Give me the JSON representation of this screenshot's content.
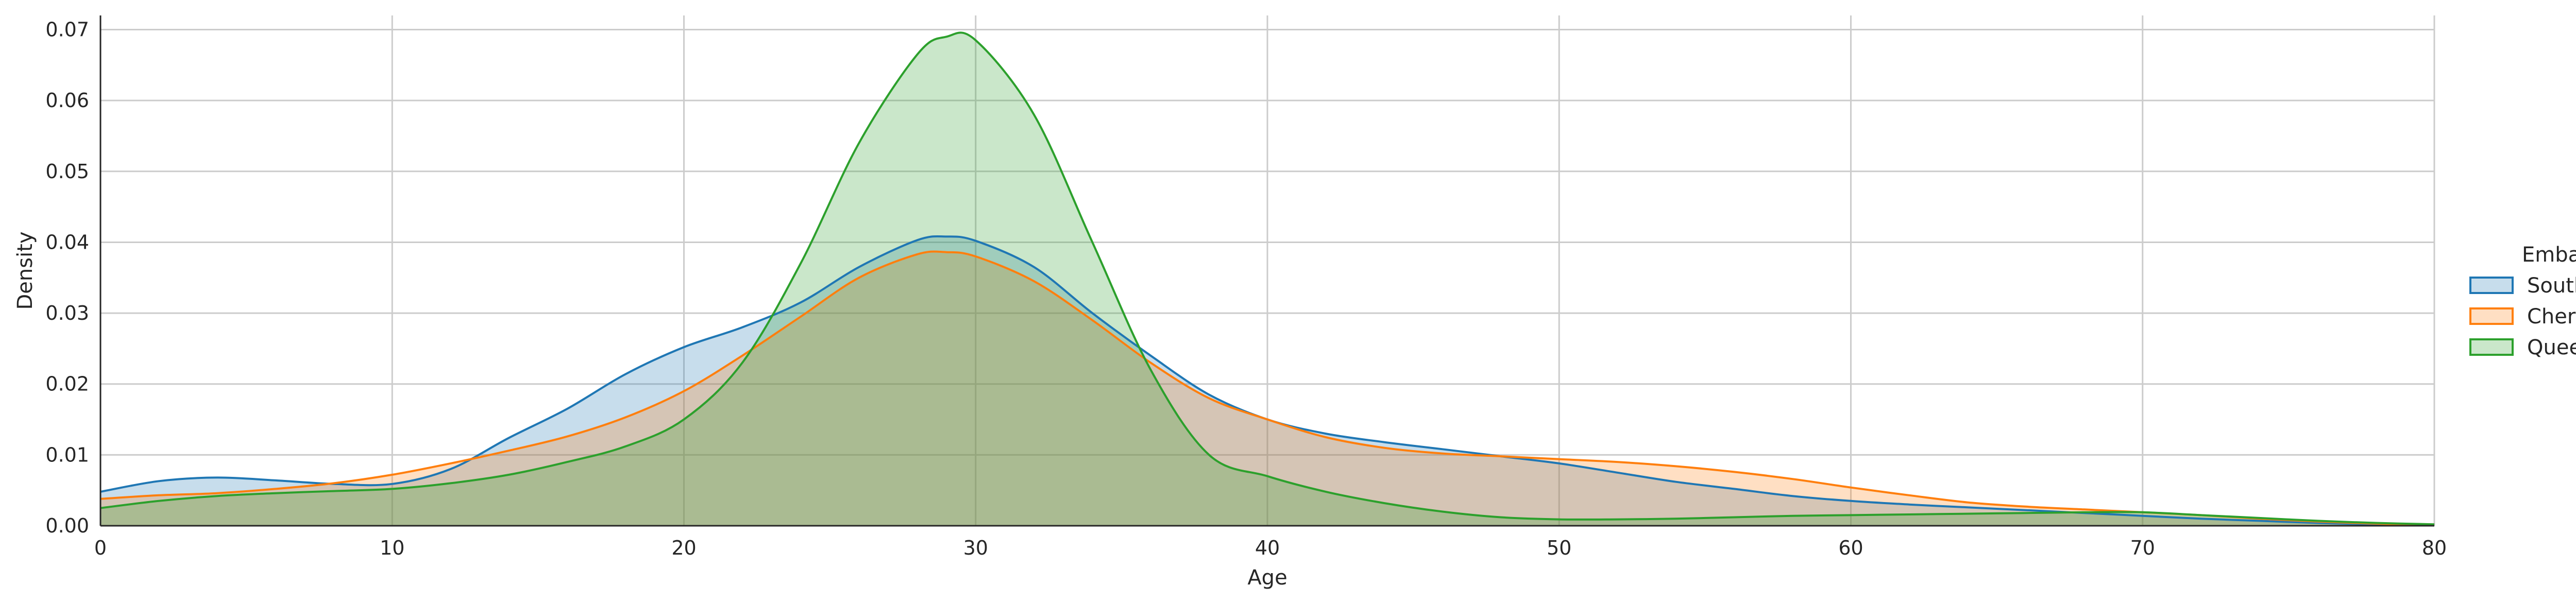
{
  "chart_data": {
    "type": "area",
    "title": "",
    "xlabel": "Age",
    "ylabel": "Density",
    "xlim": [
      0,
      80
    ],
    "ylim": [
      0,
      0.072
    ],
    "xticks": [
      0,
      10,
      20,
      30,
      40,
      50,
      60,
      70,
      80
    ],
    "yticks": [
      0.0,
      0.01,
      0.02,
      0.03,
      0.04,
      0.05,
      0.06,
      0.07
    ],
    "ytick_labels": [
      "0.00",
      "0.01",
      "0.02",
      "0.03",
      "0.04",
      "0.05",
      "0.06",
      "0.07"
    ],
    "grid": true,
    "legend": {
      "title": "Embarked",
      "placement": "right"
    },
    "x": [
      0,
      2,
      4,
      6,
      8,
      10,
      12,
      14,
      16,
      18,
      20,
      22,
      24,
      26,
      28,
      29,
      30,
      32,
      34,
      36,
      38,
      40,
      42,
      44,
      46,
      48,
      50,
      52,
      54,
      56,
      58,
      60,
      62,
      64,
      66,
      68,
      70,
      72,
      74,
      76,
      78,
      80
    ],
    "series": [
      {
        "name": "Southhampton",
        "color": "#1f77b4",
        "values": [
          0.0048,
          0.0063,
          0.0068,
          0.0064,
          0.0059,
          0.0059,
          0.008,
          0.0124,
          0.0165,
          0.0214,
          0.0252,
          0.028,
          0.0315,
          0.0365,
          0.0403,
          0.0408,
          0.0402,
          0.0365,
          0.03,
          0.024,
          0.0185,
          0.015,
          0.013,
          0.0118,
          0.0108,
          0.0098,
          0.0088,
          0.0075,
          0.0062,
          0.0052,
          0.0042,
          0.0035,
          0.003,
          0.0026,
          0.0022,
          0.0018,
          0.0014,
          0.001,
          0.0007,
          0.0004,
          0.0002,
          0.0001
        ]
      },
      {
        "name": "Cherbourg",
        "color": "#ff7f0e",
        "values": [
          0.0038,
          0.0043,
          0.0046,
          0.0052,
          0.006,
          0.0072,
          0.0088,
          0.0106,
          0.0126,
          0.0153,
          0.019,
          0.024,
          0.0295,
          0.035,
          0.0383,
          0.0386,
          0.038,
          0.0345,
          0.029,
          0.023,
          0.018,
          0.015,
          0.0125,
          0.011,
          0.0102,
          0.0098,
          0.0094,
          0.009,
          0.0084,
          0.0076,
          0.0066,
          0.0054,
          0.0043,
          0.0033,
          0.0027,
          0.0023,
          0.0019,
          0.0015,
          0.001,
          0.0006,
          0.0003,
          0.0001
        ]
      },
      {
        "name": "Queenstown",
        "color": "#2ca02c",
        "values": [
          0.0025,
          0.0035,
          0.0042,
          0.0046,
          0.0049,
          0.0052,
          0.006,
          0.0072,
          0.009,
          0.0112,
          0.015,
          0.023,
          0.037,
          0.054,
          0.0665,
          0.069,
          0.0685,
          0.058,
          0.04,
          0.022,
          0.01,
          0.007,
          0.0048,
          0.0032,
          0.002,
          0.0012,
          0.0009,
          0.0009,
          0.001,
          0.0012,
          0.0014,
          0.0015,
          0.0016,
          0.0017,
          0.0018,
          0.0019,
          0.0019,
          0.0015,
          0.0011,
          0.0007,
          0.0004,
          0.0002
        ]
      }
    ]
  }
}
